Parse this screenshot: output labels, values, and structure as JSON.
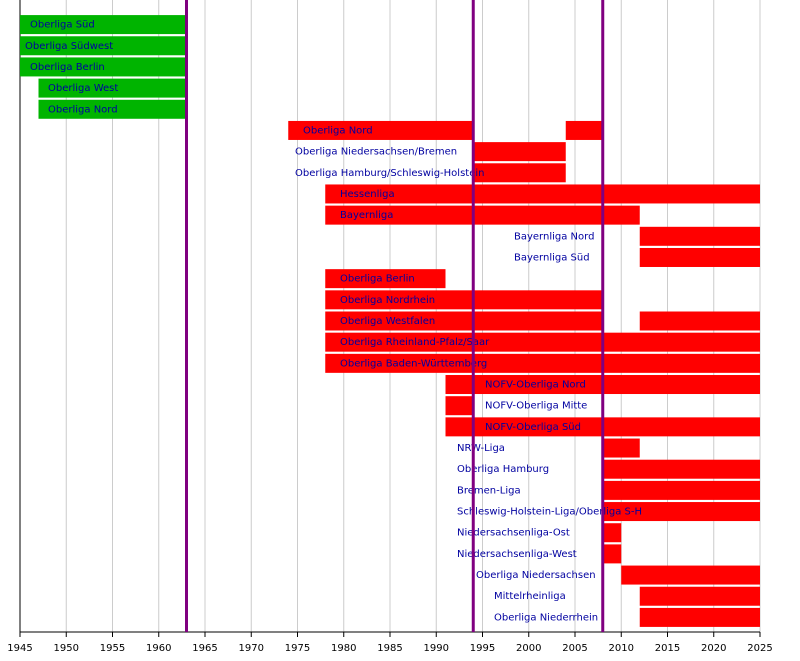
{
  "chart_data": {
    "type": "timeline",
    "xlim": [
      1945,
      2025
    ],
    "xticks": [
      1945,
      1950,
      1955,
      1960,
      1965,
      1970,
      1975,
      1980,
      1985,
      1990,
      1995,
      2000,
      2005,
      2010,
      2015,
      2020,
      2025
    ],
    "grid": true,
    "label_color": "#0000a0",
    "markers": [
      1963,
      1994,
      2008
    ],
    "marker_color": "#800080",
    "rows": [
      {
        "name": "Oberliga Süd",
        "color": "#00b400",
        "segments": [
          [
            1945,
            1963
          ]
        ]
      },
      {
        "name": "Oberliga Südwest",
        "color": "#00b400",
        "segments": [
          [
            1945,
            1963
          ]
        ]
      },
      {
        "name": "Oberliga Berlin",
        "color": "#00b400",
        "segments": [
          [
            1945,
            1963
          ]
        ]
      },
      {
        "name": "Oberliga West",
        "color": "#00b400",
        "segments": [
          [
            1947,
            1963
          ]
        ]
      },
      {
        "name": "Oberliga Nord",
        "color": "#00b400",
        "segments": [
          [
            1947,
            1963
          ]
        ]
      },
      {
        "name": "Oberliga Nord",
        "color": "#ff0000",
        "segments": [
          [
            1974,
            1994
          ],
          [
            2004,
            2008
          ]
        ]
      },
      {
        "name": "Oberliga Niedersachsen/Bremen",
        "color": "#ff0000",
        "segments": [
          [
            1994,
            2004
          ]
        ]
      },
      {
        "name": "Oberliga Hamburg/Schleswig-Holstein",
        "color": "#ff0000",
        "segments": [
          [
            1994,
            2004
          ]
        ]
      },
      {
        "name": "Hessenliga",
        "color": "#ff0000",
        "segments": [
          [
            1978,
            2025
          ]
        ]
      },
      {
        "name": "Bayernliga",
        "color": "#ff0000",
        "segments": [
          [
            1978,
            2012
          ]
        ]
      },
      {
        "name": "Bayernliga Nord",
        "color": "#ff0000",
        "segments": [
          [
            2012,
            2025
          ]
        ]
      },
      {
        "name": "Bayernliga Süd",
        "color": "#ff0000",
        "segments": [
          [
            2012,
            2025
          ]
        ]
      },
      {
        "name": "Oberliga Berlin",
        "color": "#ff0000",
        "segments": [
          [
            1978,
            1991
          ]
        ]
      },
      {
        "name": "Oberliga Nordrhein",
        "color": "#ff0000",
        "segments": [
          [
            1978,
            2008
          ]
        ]
      },
      {
        "name": "Oberliga Westfalen",
        "color": "#ff0000",
        "segments": [
          [
            1978,
            2008
          ],
          [
            2012,
            2025
          ]
        ]
      },
      {
        "name": "Oberliga Rheinland-Pfalz/Saar",
        "color": "#ff0000",
        "segments": [
          [
            1978,
            2025
          ]
        ]
      },
      {
        "name": "Oberliga Baden-Württemberg",
        "color": "#ff0000",
        "segments": [
          [
            1978,
            2025
          ]
        ]
      },
      {
        "name": "NOFV-Oberliga Nord",
        "color": "#ff0000",
        "segments": [
          [
            1991,
            2025
          ]
        ]
      },
      {
        "name": "NOFV-Oberliga Mitte",
        "color": "#ff0000",
        "segments": [
          [
            1991,
            1994
          ]
        ]
      },
      {
        "name": "NOFV-Oberliga Süd",
        "color": "#ff0000",
        "segments": [
          [
            1991,
            2025
          ]
        ]
      },
      {
        "name": "NRW-Liga",
        "color": "#ff0000",
        "segments": [
          [
            2008,
            2012
          ]
        ]
      },
      {
        "name": "Oberliga Hamburg",
        "color": "#ff0000",
        "segments": [
          [
            2008,
            2025
          ]
        ]
      },
      {
        "name": "Bremen-Liga",
        "color": "#ff0000",
        "segments": [
          [
            2008,
            2025
          ]
        ]
      },
      {
        "name": "Schleswig-Holstein-Liga/Oberliga S-H",
        "color": "#ff0000",
        "segments": [
          [
            2008,
            2025
          ]
        ]
      },
      {
        "name": "Niedersachsenliga-Ost",
        "color": "#ff0000",
        "segments": [
          [
            2008,
            2010
          ]
        ]
      },
      {
        "name": "Niedersachsenliga-West",
        "color": "#ff0000",
        "segments": [
          [
            2008,
            2010
          ]
        ]
      },
      {
        "name": "Oberliga Niedersachsen",
        "color": "#ff0000",
        "segments": [
          [
            2010,
            2025
          ]
        ]
      },
      {
        "name": "Mittelrheinliga",
        "color": "#ff0000",
        "segments": [
          [
            2012,
            2025
          ]
        ]
      },
      {
        "name": "Oberliga Niederrhein",
        "color": "#ff0000",
        "segments": [
          [
            2012,
            2025
          ]
        ]
      }
    ]
  }
}
